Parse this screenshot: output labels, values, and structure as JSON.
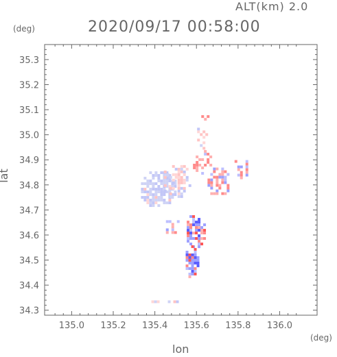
{
  "header": {
    "altitude_label": "ALT(km) 2.0",
    "timestamp": "2020/09/17 00:58:00"
  },
  "colors": {
    "axis": "#666666",
    "positive": "#ff8a8a",
    "positive_strong": "#ff5555",
    "negative": "#9da0ff",
    "negative_strong": "#5a5cff",
    "weak": "#cfd3f5"
  },
  "chart_data": {
    "type": "heatmap",
    "title": "2020/09/17 00:58:00",
    "subtitle": "ALT(km) 2.0",
    "xlabel": "lon",
    "ylabel": "lat",
    "xunit": "(deg)",
    "yunit": "(deg)",
    "xlim": [
      134.87,
      136.18
    ],
    "ylim": [
      34.28,
      35.36
    ],
    "x_ticks": [
      "135.0",
      "135.2",
      "135.4",
      "135.6",
      "135.8",
      "136.0"
    ],
    "y_ticks": [
      "34.3",
      "34.4",
      "34.5",
      "34.6",
      "34.7",
      "34.8",
      "34.9",
      "35.0",
      "35.1",
      "35.2",
      "35.3"
    ],
    "grid": false,
    "regions": [
      {
        "lon": 135.41,
        "lat": 34.79,
        "r_lon": 0.09,
        "r_lat": 0.075,
        "sign": "negative",
        "density": 0.85,
        "strength": "weak"
      },
      {
        "lon": 135.5,
        "lat": 34.82,
        "r_lon": 0.07,
        "r_lat": 0.07,
        "sign": "mixed",
        "density": 0.45,
        "strength": "weak"
      },
      {
        "lon": 135.62,
        "lat": 34.9,
        "r_lon": 0.05,
        "r_lat": 0.05,
        "sign": "positive",
        "density": 0.5,
        "strength": "medium"
      },
      {
        "lon": 135.63,
        "lat": 35.0,
        "r_lon": 0.04,
        "r_lat": 0.05,
        "sign": "positive",
        "density": 0.35,
        "strength": "weak"
      },
      {
        "lon": 135.63,
        "lat": 35.08,
        "r_lon": 0.02,
        "r_lat": 0.02,
        "sign": "positive",
        "density": 0.6,
        "strength": "medium"
      },
      {
        "lon": 135.7,
        "lat": 34.82,
        "r_lon": 0.06,
        "r_lat": 0.06,
        "sign": "mixed",
        "density": 0.5,
        "strength": "medium"
      },
      {
        "lon": 135.81,
        "lat": 34.87,
        "r_lon": 0.04,
        "r_lat": 0.04,
        "sign": "mixed",
        "density": 0.4,
        "strength": "medium"
      },
      {
        "lon": 135.59,
        "lat": 34.62,
        "r_lon": 0.05,
        "r_lat": 0.07,
        "sign": "mixed",
        "density": 0.8,
        "strength": "strong"
      },
      {
        "lon": 135.57,
        "lat": 34.5,
        "r_lon": 0.035,
        "r_lat": 0.07,
        "sign": "mixed",
        "density": 0.75,
        "strength": "strong"
      },
      {
        "lon": 135.48,
        "lat": 34.63,
        "r_lon": 0.04,
        "r_lat": 0.04,
        "sign": "mixed",
        "density": 0.35,
        "strength": "medium"
      },
      {
        "lon": 135.45,
        "lat": 34.34,
        "r_lon": 0.08,
        "r_lat": 0.01,
        "sign": "mixed",
        "density": 0.4,
        "strength": "weak"
      }
    ]
  }
}
